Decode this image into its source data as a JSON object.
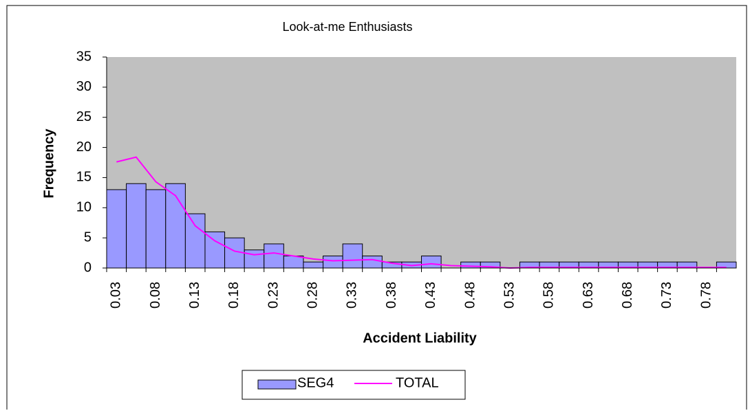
{
  "chart_data": {
    "type": "bar",
    "title": "Look-at-me Enthusiasts",
    "x_label": "Accident Liability",
    "y_label": "Frequency",
    "categories": [
      "0.03",
      null,
      "0.08",
      null,
      "0.13",
      null,
      "0.18",
      null,
      "0.23",
      null,
      "0.28",
      null,
      "0.33",
      null,
      "0.38",
      null,
      "0.43",
      null,
      "0.48",
      null,
      "0.53",
      null,
      "0.58",
      null,
      "0.63",
      null,
      "0.68",
      null,
      "0.73",
      null,
      "0.78",
      null
    ],
    "series": [
      {
        "name": "SEG4",
        "type": "bar",
        "color": "#9999ff",
        "values": [
          13,
          14,
          13,
          14,
          9,
          6,
          5,
          3,
          4,
          2,
          1,
          2,
          4,
          2,
          1,
          1,
          2,
          0,
          1,
          1,
          0,
          1,
          1,
          1,
          1,
          1,
          1,
          1,
          1,
          1,
          0,
          1
        ]
      },
      {
        "name": "TOTAL",
        "type": "line",
        "color": "#ff00ff",
        "values": [
          17.6,
          18.4,
          14.3,
          12,
          7,
          4.5,
          2.8,
          2.2,
          2.5,
          2,
          1.5,
          1.2,
          1.3,
          1.4,
          0.8,
          0.4,
          0.7,
          0.4,
          0.3,
          0.2,
          0,
          0.1,
          0.1,
          0.1,
          0.1,
          0.1,
          0.1,
          0.1,
          0.1,
          0.1,
          0.1,
          0.1
        ]
      }
    ],
    "ylim": [
      0,
      35
    ],
    "yticks": [
      0,
      5,
      10,
      15,
      20,
      25,
      30,
      35
    ],
    "plot_background": "#c0c0c0",
    "legend": "bottom"
  }
}
